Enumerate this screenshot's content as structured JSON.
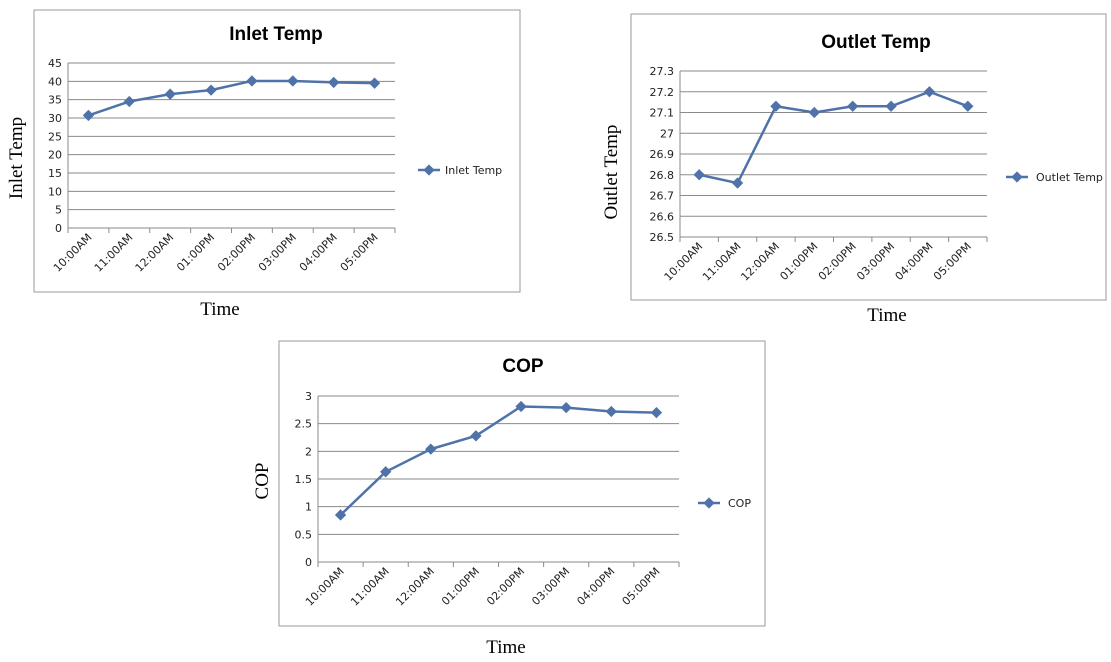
{
  "chart_data": [
    {
      "id": "inlet",
      "type": "line",
      "title": "Inlet Temp",
      "xlabel": "Time",
      "ylabel": "Inlet Temp",
      "categories": [
        "10:00AM",
        "11:00AM",
        "12:00AM",
        "01:00PM",
        "02:00PM",
        "03:00PM",
        "04:00PM",
        "05:00PM"
      ],
      "series": [
        {
          "name": "Inlet Temp",
          "values": [
            30.7,
            34.5,
            36.5,
            37.6,
            40.1,
            40.1,
            39.7,
            39.5
          ]
        }
      ],
      "ylim": [
        0,
        45
      ],
      "yticks": [
        "0",
        "5",
        "10",
        "15",
        "20",
        "25",
        "30",
        "35",
        "40",
        "45"
      ],
      "grid": true,
      "legend": "right"
    },
    {
      "id": "outlet",
      "type": "line",
      "title": "Outlet Temp",
      "xlabel": "Time",
      "ylabel": "Outlet Temp",
      "categories": [
        "10:00AM",
        "11:00AM",
        "12:00AM",
        "01:00PM",
        "02:00PM",
        "03:00PM",
        "04:00PM",
        "05:00PM"
      ],
      "series": [
        {
          "name": "Outlet Temp",
          "values": [
            26.8,
            26.76,
            27.13,
            27.1,
            27.13,
            27.13,
            27.2,
            27.13
          ]
        }
      ],
      "ylim": [
        26.5,
        27.3
      ],
      "yticks": [
        "26.5",
        "26.6",
        "26.7",
        "26.8",
        "26.9",
        "27",
        "27.1",
        "27.2",
        "27.3"
      ],
      "grid": true,
      "legend": "right"
    },
    {
      "id": "cop",
      "type": "line",
      "title": "COP",
      "xlabel": "Time",
      "ylabel": "COP",
      "categories": [
        "10:00AM",
        "11:00AM",
        "12:00AM",
        "01:00PM",
        "02:00PM",
        "03:00PM",
        "04:00PM",
        "05:00PM"
      ],
      "series": [
        {
          "name": "COP",
          "values": [
            0.85,
            1.63,
            2.04,
            2.28,
            2.81,
            2.79,
            2.72,
            2.7
          ]
        }
      ],
      "ylim": [
        0,
        3
      ],
      "yticks": [
        "0",
        "0.5",
        "1",
        "1.5",
        "2",
        "2.5",
        "3"
      ],
      "grid": true,
      "legend": "right"
    }
  ],
  "colors": {
    "series": "#4f73a8",
    "grid": "#8a8a8a",
    "frame": "#9a9a9a"
  }
}
